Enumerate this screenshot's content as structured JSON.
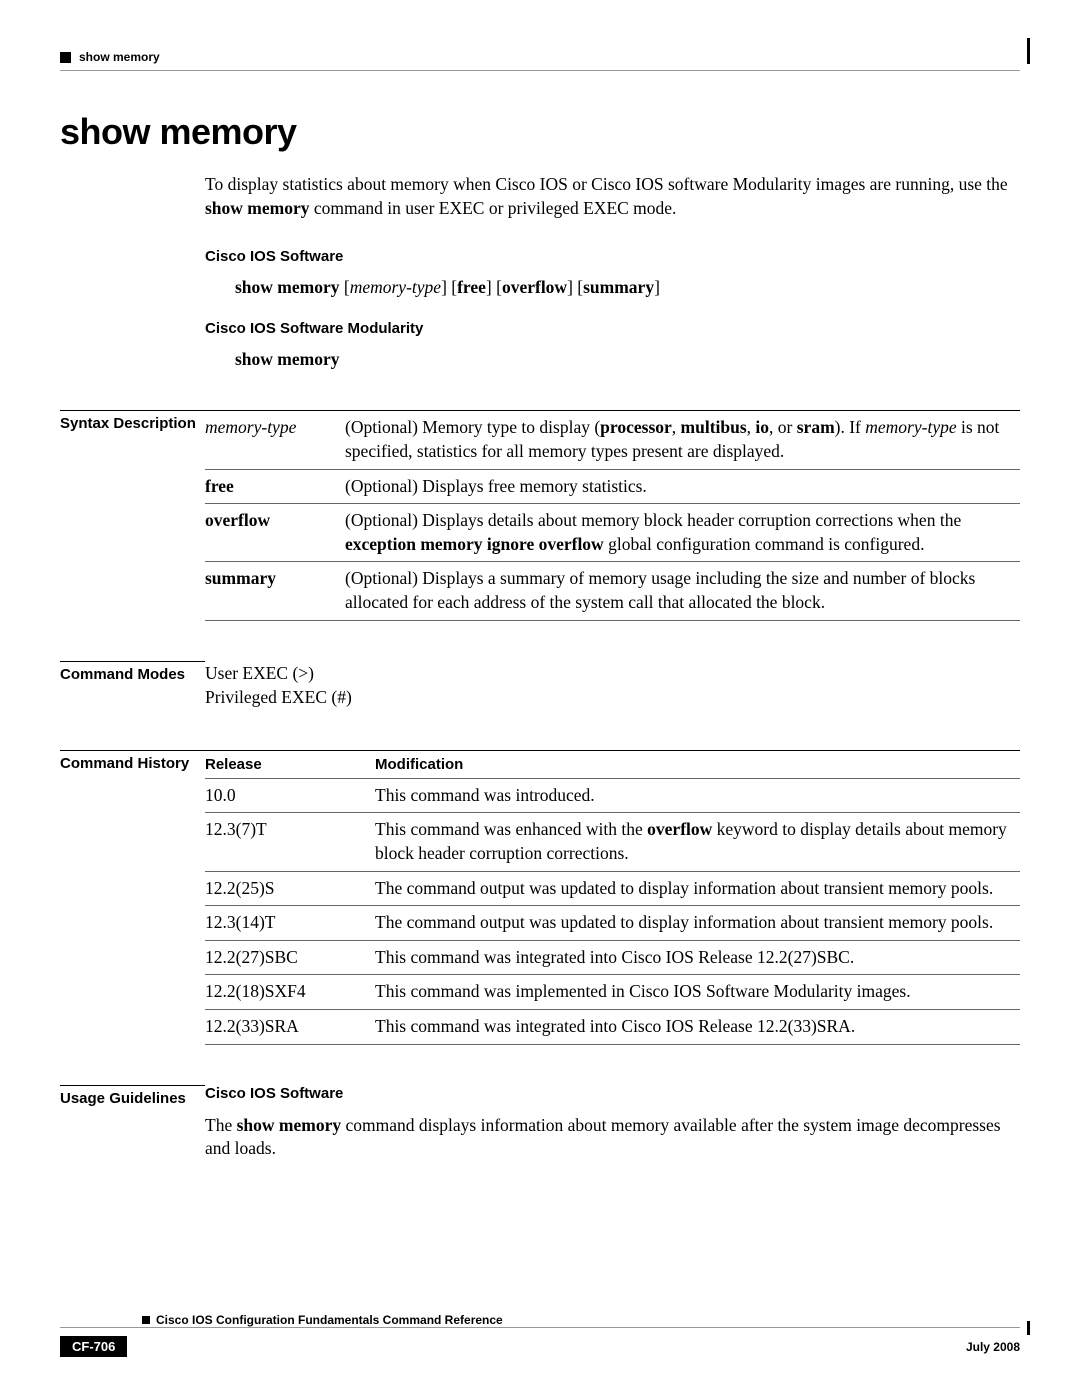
{
  "header": {
    "running": "show memory"
  },
  "title": "show memory",
  "intro": {
    "p1a": "To display statistics about memory when Cisco IOS or Cisco IOS software Modularity images are running, use the ",
    "p1b": "show memory",
    "p1c": " command in user EXEC or privileged EXEC mode."
  },
  "sub1": "Cisco IOS Software",
  "cmd1": {
    "a": "show memory",
    "b": " [",
    "c": "memory-type",
    "d": "] [",
    "e": "free",
    "f": "] [",
    "g": "overflow",
    "h": "] [",
    "i": "summary",
    "j": "]"
  },
  "sub2": "Cisco IOS Software Modularity",
  "cmd2": "show memory",
  "labels": {
    "syntax": "Syntax Description",
    "modes": "Command Modes",
    "history": "Command History",
    "usage": "Usage Guidelines"
  },
  "syntax": {
    "r1": {
      "k": "memory-type",
      "da": "(Optional) Memory type to display (",
      "db": "processor",
      "dc": ", ",
      "dd": "multibus",
      "de": ", ",
      "df": "io",
      "dg": ", or ",
      "dh": "sram",
      "di": "). If ",
      "dj": "memory-type",
      "dk": " is not specified, statistics for all memory types present are displayed."
    },
    "r2": {
      "k": "free",
      "d": "(Optional) Displays free memory statistics."
    },
    "r3": {
      "k": "overflow",
      "da": "(Optional) Displays details about memory block header corruption corrections when the ",
      "db": "exception memory ignore overflow",
      "dc": " global configuration command is configured."
    },
    "r4": {
      "k": "summary",
      "d": "(Optional) Displays a summary of memory usage including the size and number of blocks allocated for each address of the system call that allocated the block."
    }
  },
  "modes": {
    "l1": "User EXEC (>)",
    "l2": "Privileged EXEC (#)"
  },
  "history": {
    "h1": "Release",
    "h2": "Modification",
    "r1": {
      "rel": "10.0",
      "mod": "This command was introduced."
    },
    "r2": {
      "rel": "12.3(7)T",
      "ma": "This command was enhanced with the ",
      "mb": "overflow",
      "mc": " keyword to display details about memory block header corruption corrections."
    },
    "r3": {
      "rel": "12.2(25)S",
      "mod": "The command output was updated to display information about transient memory pools."
    },
    "r4": {
      "rel": "12.3(14)T",
      "mod": "The command output was updated to display information about transient memory pools."
    },
    "r5": {
      "rel": "12.2(27)SBC",
      "mod": "This command was integrated into Cisco IOS Release 12.2(27)SBC."
    },
    "r6": {
      "rel": "12.2(18)SXF4",
      "mod": "This command was implemented in Cisco IOS Software Modularity images."
    },
    "r7": {
      "rel": "12.2(33)SRA",
      "mod": "This command was integrated into Cisco IOS Release 12.2(33)SRA."
    }
  },
  "usage": {
    "sub": "Cisco IOS Software",
    "pa": "The ",
    "pb": "show memory",
    "pc": " command displays information about memory available after the system image decompresses and loads."
  },
  "footer": {
    "title": "Cisco IOS Configuration Fundamentals Command Reference",
    "page": "CF-706",
    "date": "July 2008"
  }
}
